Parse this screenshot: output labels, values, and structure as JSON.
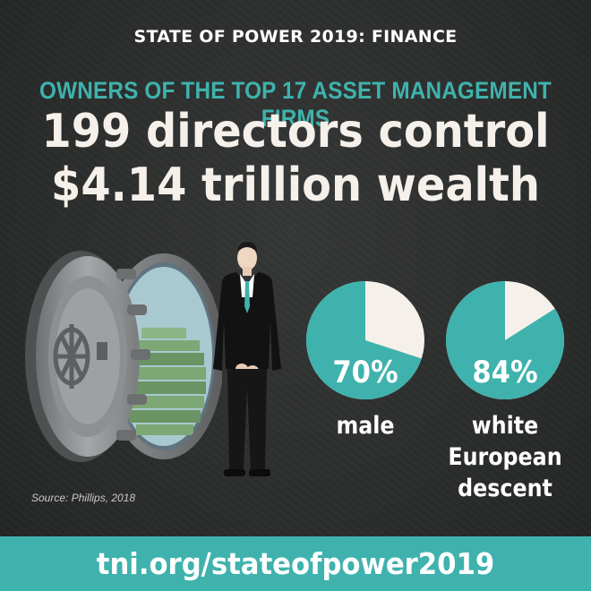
{
  "header": {
    "title": "STATE OF POWER 2019: FINANCE"
  },
  "subtitle": "OWNERS OF THE TOP 17 ASSET MANAGEMENT FIRMS",
  "headline": {
    "line1": "199 directors control",
    "line2": "$4.14 trillion wealth"
  },
  "stats": [
    {
      "percent": "70%",
      "value": 0.7,
      "label": "male"
    },
    {
      "percent": "84%",
      "value": 0.84,
      "label_line1": "white",
      "label_line2": "European",
      "label_line3": "descent"
    }
  ],
  "source": "Source: Phillips, 2018",
  "footer": {
    "url": "tni.org/stateofpower2019"
  },
  "colors": {
    "teal": "#3fb2ad",
    "cream": "#f5f1ea",
    "background": "#2b2d2c"
  },
  "illustrations": [
    "bank-vault-with-money",
    "businessman-in-suit"
  ]
}
